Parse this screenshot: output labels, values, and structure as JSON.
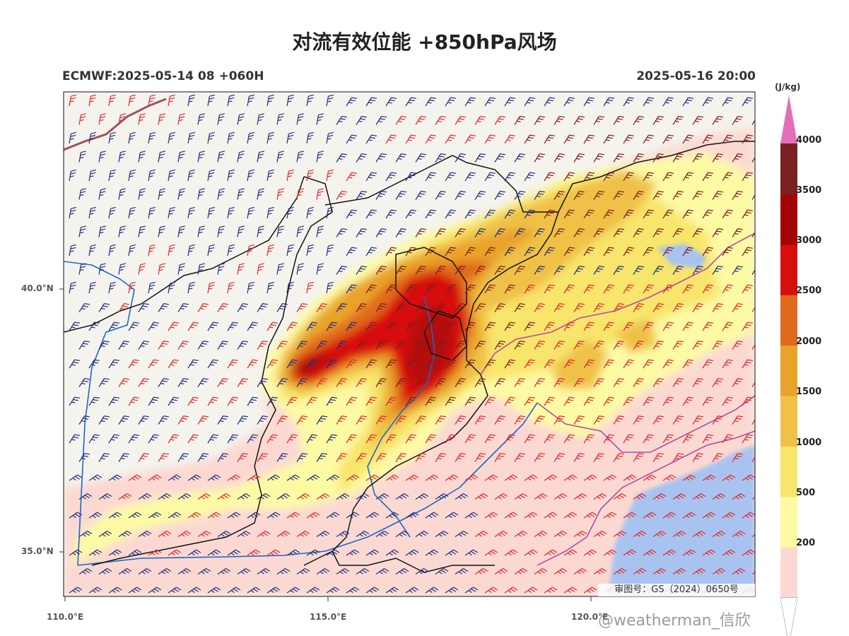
{
  "title": "对流有效位能 +850hPa风场",
  "subtitle_left": "ECMWF:2025-05-14 08 +060H",
  "subtitle_right": "2025-05-16 20:00",
  "lat_labels": [
    "40.0°N",
    "35.0°N"
  ],
  "lon_labels": [
    "110.0°E",
    "115.0°E",
    "120.0°E"
  ],
  "colorbar": {
    "unit": "(J/kg)",
    "ticks": [
      "200",
      "500",
      "1000",
      "1500",
      "2000",
      "2500",
      "3000",
      "3500",
      "4000"
    ],
    "colors": [
      "#fbd9d2",
      "#fdfaa4",
      "#f8e56c",
      "#efc147",
      "#e9a32b",
      "#e06a1d",
      "#d70e0e",
      "#a40404",
      "#7a2020"
    ],
    "extend_color": "#e36fb8"
  },
  "map_approval": "审图号：GS（2024）0650号",
  "watermark": "@weatherman_信欣",
  "colors": {
    "land": "#f4f3ee",
    "sea": "#a9c3f0",
    "wind_red": "#e1262a",
    "wind_blue": "#1f2d7a",
    "wind_dark": "#7a1e1e",
    "border": "#111111",
    "river": "#1a67c9",
    "coast": "#b04ea3"
  }
}
